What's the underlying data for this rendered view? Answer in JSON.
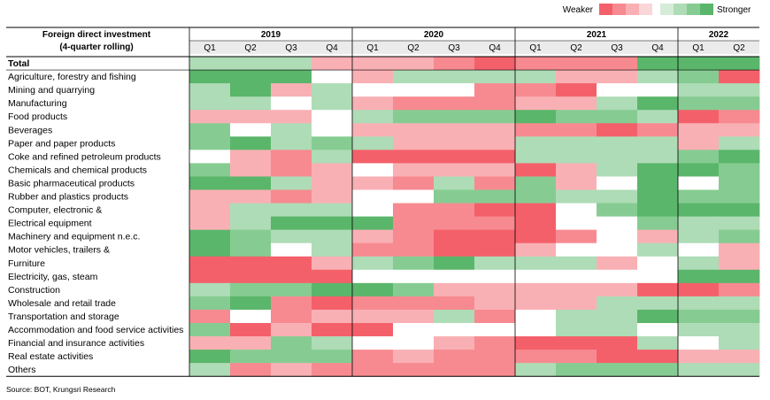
{
  "header": {
    "title_line1": "Foreign direct investment",
    "title_line2": "(4-quarter rolling)"
  },
  "legend": {
    "weaker": "Weaker",
    "stronger": "Stronger",
    "weaker_colors": [
      "#f4606a",
      "#f78a90",
      "#f9b0b4",
      "#fbd6d8"
    ],
    "stronger_colors": [
      "#d5ecd9",
      "#aedcb6",
      "#86cc92",
      "#5ab66a"
    ]
  },
  "source": "Source: BOT, Krungsri Research",
  "chart_data": {
    "type": "heatmap",
    "scale": "-3 (weakest) to +3 (strongest)",
    "years": [
      {
        "label": "2019",
        "quarters": [
          "Q1",
          "Q2",
          "Q3",
          "Q4"
        ]
      },
      {
        "label": "2020",
        "quarters": [
          "Q1",
          "Q2",
          "Q3",
          "Q4"
        ]
      },
      {
        "label": "2021",
        "quarters": [
          "Q1",
          "Q2",
          "Q3",
          "Q4"
        ]
      },
      {
        "label": "2022",
        "quarters": [
          "Q1",
          "Q2"
        ]
      }
    ],
    "rows": [
      {
        "label": "Total",
        "bold": true,
        "values": [
          1,
          1,
          1,
          -1,
          -1,
          -1,
          -2,
          -3,
          -2,
          -2,
          -2,
          3,
          3,
          3
        ]
      },
      {
        "label": "Agriculture, forestry and fishing",
        "values": [
          3,
          3,
          3,
          0,
          -1,
          1,
          1,
          1,
          1,
          -1,
          -1,
          1,
          2,
          -3
        ]
      },
      {
        "label": "Mining and quarrying",
        "values": [
          1,
          3,
          -1,
          1,
          0,
          0,
          0,
          -2,
          -2,
          -3,
          0,
          0,
          1,
          1
        ]
      },
      {
        "label": "Manufacturing",
        "values": [
          1,
          1,
          0,
          1,
          -1,
          -2,
          -2,
          -2,
          -1,
          -1,
          1,
          3,
          2,
          2
        ]
      },
      {
        "label": "Food products",
        "values": [
          -1,
          -1,
          -1,
          0,
          1,
          2,
          2,
          2,
          3,
          2,
          2,
          1,
          -3,
          -2
        ]
      },
      {
        "label": "Beverages",
        "values": [
          2,
          0,
          1,
          0,
          -1,
          -1,
          -1,
          -1,
          -2,
          -2,
          -3,
          -2,
          -1,
          -1
        ]
      },
      {
        "label": "Paper and paper products",
        "values": [
          2,
          3,
          1,
          2,
          1,
          -1,
          -1,
          -1,
          1,
          1,
          1,
          1,
          -1,
          1
        ]
      },
      {
        "label": "Coke and refined petroleum products",
        "values": [
          0,
          -1,
          -2,
          1,
          -3,
          -3,
          -3,
          -3,
          1,
          1,
          1,
          1,
          2,
          3
        ]
      },
      {
        "label": "Chemicals and chemical products",
        "values": [
          2,
          -1,
          -2,
          -1,
          0,
          -1,
          -1,
          -1,
          -3,
          -1,
          1,
          3,
          3,
          2
        ]
      },
      {
        "label": "Basic pharmaceutical products",
        "values": [
          3,
          3,
          1,
          -1,
          -1,
          -2,
          1,
          -2,
          2,
          -1,
          0,
          3,
          0,
          2
        ]
      },
      {
        "label": "Rubber and plastics products",
        "values": [
          -1,
          -1,
          -2,
          -1,
          0,
          0,
          2,
          2,
          2,
          1,
          1,
          3,
          2,
          2
        ]
      },
      {
        "label": "Computer, electronic &",
        "values": [
          -1,
          1,
          1,
          1,
          0,
          -2,
          -2,
          -3,
          -3,
          0,
          2,
          3,
          3,
          3
        ]
      },
      {
        "label": "Electrical equipment",
        "values": [
          -1,
          1,
          3,
          3,
          3,
          -2,
          -2,
          -2,
          -3,
          0,
          0,
          2,
          1,
          1
        ]
      },
      {
        "label": "Machinery and equipment n.e.c.",
        "values": [
          3,
          2,
          1,
          1,
          -1,
          -2,
          -3,
          -3,
          -3,
          -2,
          0,
          -1,
          1,
          2
        ]
      },
      {
        "label": "Motor vehicles, trailers &",
        "values": [
          3,
          2,
          0,
          1,
          -2,
          -2,
          -3,
          -3,
          -1,
          0,
          0,
          1,
          0,
          -1
        ]
      },
      {
        "label": "Furniture",
        "values": [
          -3,
          -3,
          -3,
          -1,
          1,
          2,
          3,
          1,
          1,
          1,
          -1,
          0,
          1,
          -1
        ]
      },
      {
        "label": "Electricity, gas, steam",
        "values": [
          -3,
          -3,
          -3,
          -3,
          0,
          0,
          0,
          0,
          0,
          0,
          0,
          0,
          3,
          3
        ]
      },
      {
        "label": "Construction",
        "values": [
          1,
          2,
          2,
          3,
          3,
          2,
          -1,
          -1,
          -1,
          -1,
          -1,
          -3,
          -3,
          -2
        ]
      },
      {
        "label": "Wholesale and retail trade",
        "values": [
          2,
          3,
          -2,
          -3,
          -2,
          -2,
          -2,
          -1,
          -1,
          -1,
          1,
          1,
          1,
          1
        ]
      },
      {
        "label": "Transportation and storage",
        "values": [
          -2,
          0,
          -2,
          -1,
          -1,
          -1,
          1,
          -2,
          0,
          1,
          1,
          3,
          2,
          2
        ]
      },
      {
        "label": "Accommodation and food service activities",
        "values": [
          2,
          -3,
          -1,
          -3,
          -3,
          0,
          0,
          0,
          0,
          1,
          1,
          0,
          1,
          1
        ]
      },
      {
        "label": "Financial and insurance activities",
        "values": [
          -1,
          -1,
          2,
          1,
          0,
          0,
          -1,
          -2,
          -3,
          -3,
          -3,
          1,
          0,
          1
        ]
      },
      {
        "label": "Real estate activities",
        "values": [
          3,
          2,
          2,
          2,
          -2,
          -1,
          -2,
          -2,
          -2,
          -2,
          -3,
          -3,
          -1,
          -1
        ]
      },
      {
        "label": "Others",
        "values": [
          1,
          -2,
          -1,
          -2,
          -2,
          -2,
          -2,
          -2,
          1,
          2,
          2,
          2,
          1,
          1
        ]
      }
    ]
  }
}
